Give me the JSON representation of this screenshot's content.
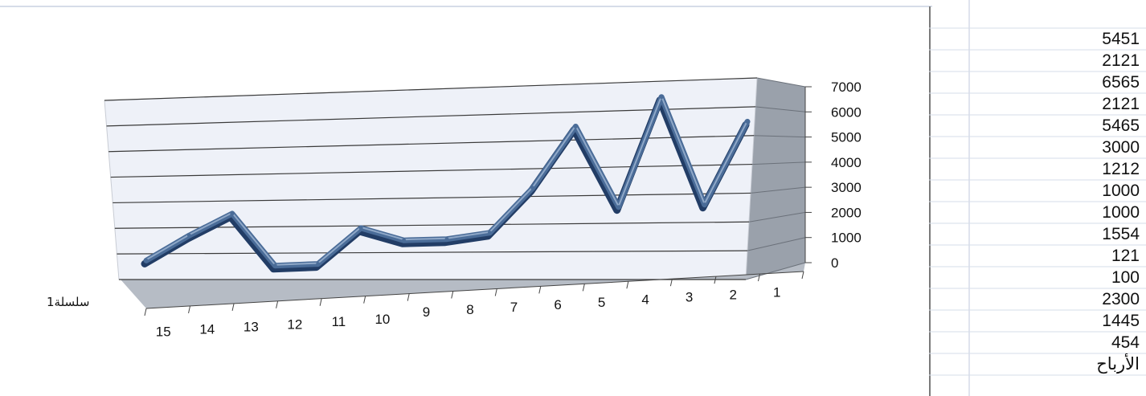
{
  "sheet": {
    "values": [
      "5451",
      "2121",
      "6565",
      "2121",
      "5465",
      "3000",
      "1212",
      "1000",
      "1000",
      "1554",
      "121",
      "100",
      "2300",
      "1445",
      "454"
    ],
    "header": "الأرباح"
  },
  "colors": {
    "line": "#4a6c98",
    "line_shadow": "#223d66",
    "wall": "#eef1f8",
    "side_wall": "#9aa1ab",
    "floor": "#b6bcc5",
    "gridline": "#3a3a3a",
    "cell_border": "#d6dce8"
  },
  "chart_data": {
    "type": "line",
    "style": "3d-line",
    "categories": [
      "1",
      "2",
      "3",
      "4",
      "5",
      "6",
      "7",
      "8",
      "9",
      "10",
      "11",
      "12",
      "13",
      "14",
      "15"
    ],
    "series": [
      {
        "name": "سلسلة1",
        "values": [
          5451,
          2121,
          6565,
          2121,
          5465,
          3000,
          1212,
          1000,
          1000,
          1554,
          121,
          100,
          2300,
          1445,
          454
        ]
      }
    ],
    "yticks": [
      "0",
      "1000",
      "2000",
      "3000",
      "4000",
      "5000",
      "6000",
      "7000"
    ],
    "ylim": [
      0,
      7000
    ],
    "grid": true,
    "xaxis_reversed": true,
    "yaxis_side": "right"
  }
}
